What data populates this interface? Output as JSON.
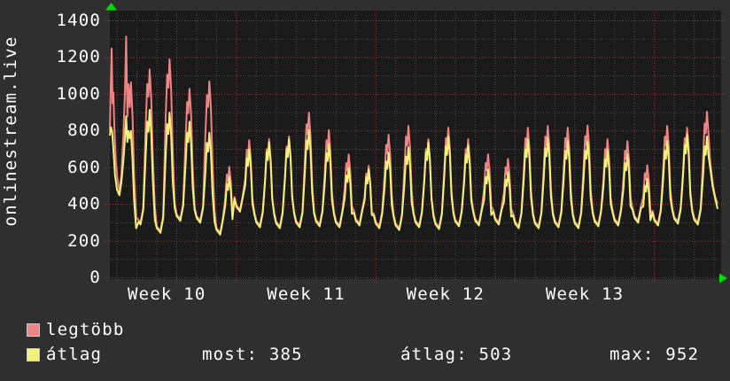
{
  "site": "onlinestream.live",
  "legend": {
    "max_label": "legtöbb",
    "avg_label": "átlag"
  },
  "stats": {
    "current": "most: 385",
    "average": "átlag: 503",
    "max": "max: 952"
  },
  "colors": {
    "max_line": "#f08383",
    "avg_line": "#f2f276",
    "grid_minor": "#4e4e4e",
    "grid_major": "#a83838",
    "arrow": "#00de00",
    "plot_bg": "#1a1a1a",
    "outer_bg": "#2f2f2f",
    "text": "#ffffff",
    "swatch_border": "#c9c9c9"
  },
  "chart_data": {
    "type": "line",
    "title": "onlinestream.live",
    "ylabel": "",
    "xlabel": "",
    "ylim": [
      0,
      1400
    ],
    "y_major_step": 200,
    "y_minor_step": 100,
    "y_tick_labels": [
      "0",
      "200",
      "400",
      "600",
      "800",
      "1000",
      "1200",
      "1400"
    ],
    "x_start": 0.64,
    "x_end": 31.35,
    "days_per_week": 7,
    "weeks": [
      {
        "label": "Week 10",
        "center_day": 3.5
      },
      {
        "label": "Week 11",
        "center_day": 10.5
      },
      {
        "label": "Week 12",
        "center_day": 17.5
      },
      {
        "label": "Week 13",
        "center_day": 24.5
      }
    ],
    "series": [
      {
        "key": "max",
        "name": "legtöbb",
        "color": "#f08383"
      },
      {
        "key": "avg",
        "name": "átlag",
        "color": "#f2f276"
      }
    ],
    "summary": {
      "most": 385,
      "atlag": 503,
      "max": 952
    },
    "days": [
      [
        2,
        1135,
        915,
        300
      ],
      [
        3,
        1190,
        900,
        255
      ],
      [
        4,
        1030,
        850,
        320
      ],
      [
        5,
        1070,
        790,
        310
      ],
      [
        6,
        605,
        550,
        245
      ],
      [
        7,
        750,
        700,
        370
      ],
      [
        8,
        755,
        737,
        285
      ],
      [
        9,
        770,
        755,
        280
      ],
      [
        10,
        900,
        805,
        285
      ],
      [
        11,
        805,
        730,
        290
      ],
      [
        12,
        672,
        600,
        285
      ],
      [
        13,
        610,
        590,
        295
      ],
      [
        14,
        779,
        682,
        280
      ],
      [
        15,
        828,
        711,
        270
      ],
      [
        16,
        755,
        737,
        285
      ],
      [
        17,
        818,
        770,
        275
      ],
      [
        18,
        755,
        721,
        290
      ],
      [
        19,
        672,
        590,
        295
      ],
      [
        20,
        648,
        575,
        300
      ],
      [
        21,
        818,
        755,
        280
      ],
      [
        22,
        828,
        760,
        280
      ],
      [
        23,
        818,
        745,
        285
      ],
      [
        24,
        830,
        745,
        280
      ],
      [
        25,
        755,
        696,
        290
      ],
      [
        26,
        745,
        672,
        295
      ],
      [
        27,
        613,
        540,
        310
      ],
      [
        28,
        828,
        745,
        295
      ],
      [
        29,
        818,
        779,
        305
      ],
      [
        30,
        905,
        770,
        300
      ]
    ],
    "end_trough": 330,
    "clip_day": 30.78,
    "lead_in": {
      "max": [
        [
          0.64,
          800
        ],
        [
          0.69,
          1060
        ],
        [
          0.73,
          1250
        ],
        [
          0.78,
          950
        ],
        [
          0.82,
          1010
        ],
        [
          0.87,
          800
        ],
        [
          0.94,
          640
        ],
        [
          1.02,
          540
        ],
        [
          1.12,
          470
        ],
        [
          1.22,
          560
        ],
        [
          1.32,
          780
        ],
        [
          1.4,
          1020
        ],
        [
          1.46,
          1315
        ],
        [
          1.52,
          880
        ],
        [
          1.58,
          1055
        ],
        [
          1.64,
          930
        ],
        [
          1.7,
          1065
        ],
        [
          1.78,
          880
        ],
        [
          1.86,
          560
        ],
        [
          1.96,
          330
        ]
      ],
      "avg": [
        [
          0.64,
          775
        ],
        [
          0.7,
          820
        ],
        [
          0.76,
          790
        ],
        [
          0.82,
          700
        ],
        [
          0.9,
          560
        ],
        [
          1.0,
          480
        ],
        [
          1.12,
          450
        ],
        [
          1.22,
          520
        ],
        [
          1.32,
          640
        ],
        [
          1.4,
          760
        ],
        [
          1.46,
          880
        ],
        [
          1.52,
          740
        ],
        [
          1.58,
          800
        ],
        [
          1.64,
          760
        ],
        [
          1.7,
          800
        ],
        [
          1.78,
          640
        ],
        [
          1.86,
          420
        ],
        [
          1.96,
          270
        ]
      ]
    },
    "tail": {
      "max": [
        [
          30.8,
          640
        ],
        [
          30.92,
          520
        ],
        [
          31.05,
          440
        ],
        [
          31.17,
          405
        ]
      ],
      "avg": [
        [
          30.8,
          600
        ],
        [
          30.92,
          500
        ],
        [
          31.05,
          430
        ],
        [
          31.17,
          375
        ]
      ]
    }
  }
}
